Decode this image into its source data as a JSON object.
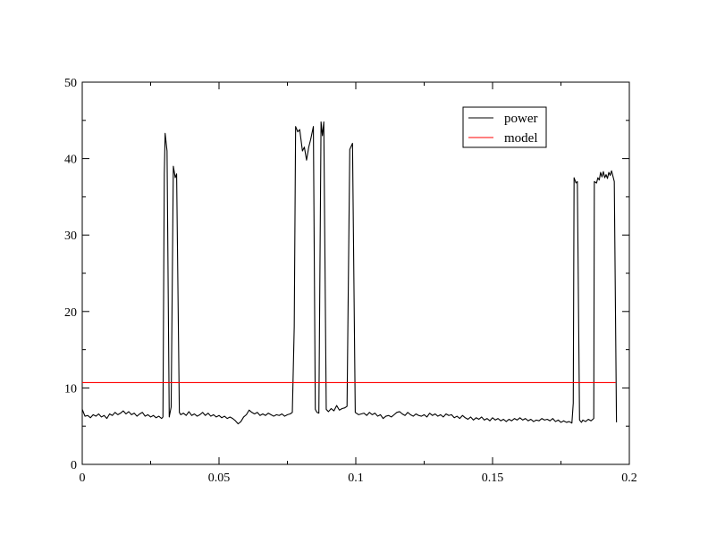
{
  "chart_data": {
    "type": "line",
    "title": "",
    "xlabel": "",
    "ylabel": "",
    "xlim": [
      0,
      0.2
    ],
    "ylim": [
      0,
      50
    ],
    "x_ticks": [
      0,
      0.05,
      0.1,
      0.15,
      0.2
    ],
    "x_tick_labels": [
      "0",
      "0.05",
      "0.1",
      "0.15",
      "0.2"
    ],
    "y_ticks": [
      0,
      10,
      20,
      30,
      40,
      50
    ],
    "y_tick_labels": [
      "0",
      "10",
      "20",
      "30",
      "40",
      "50"
    ],
    "grid": false,
    "legend_position": "top-right",
    "series": [
      {
        "name": "power",
        "color": "#000000",
        "points": [
          [
            0.0,
            7.2
          ],
          [
            0.001,
            6.3
          ],
          [
            0.002,
            6.4
          ],
          [
            0.003,
            6.1
          ],
          [
            0.004,
            6.5
          ],
          [
            0.005,
            6.3
          ],
          [
            0.006,
            6.6
          ],
          [
            0.007,
            6.2
          ],
          [
            0.008,
            6.4
          ],
          [
            0.009,
            6.0
          ],
          [
            0.01,
            6.6
          ],
          [
            0.011,
            6.4
          ],
          [
            0.012,
            6.8
          ],
          [
            0.013,
            6.5
          ],
          [
            0.014,
            6.7
          ],
          [
            0.015,
            7.0
          ],
          [
            0.016,
            6.6
          ],
          [
            0.017,
            6.9
          ],
          [
            0.018,
            6.5
          ],
          [
            0.019,
            6.7
          ],
          [
            0.02,
            6.3
          ],
          [
            0.021,
            6.6
          ],
          [
            0.022,
            6.8
          ],
          [
            0.023,
            6.3
          ],
          [
            0.024,
            6.5
          ],
          [
            0.025,
            6.2
          ],
          [
            0.026,
            6.4
          ],
          [
            0.027,
            6.1
          ],
          [
            0.028,
            6.3
          ],
          [
            0.029,
            6.0
          ],
          [
            0.0295,
            6.2
          ],
          [
            0.03,
            38.0
          ],
          [
            0.0303,
            43.3
          ],
          [
            0.031,
            41.0
          ],
          [
            0.0318,
            6.2
          ],
          [
            0.0325,
            7.5
          ],
          [
            0.0333,
            39.0
          ],
          [
            0.034,
            37.5
          ],
          [
            0.0345,
            38.0
          ],
          [
            0.0355,
            6.8
          ],
          [
            0.036,
            6.5
          ],
          [
            0.037,
            6.7
          ],
          [
            0.038,
            6.4
          ],
          [
            0.039,
            6.9
          ],
          [
            0.04,
            6.4
          ],
          [
            0.041,
            6.6
          ],
          [
            0.042,
            6.3
          ],
          [
            0.043,
            6.5
          ],
          [
            0.044,
            6.8
          ],
          [
            0.045,
            6.4
          ],
          [
            0.046,
            6.7
          ],
          [
            0.047,
            6.3
          ],
          [
            0.048,
            6.5
          ],
          [
            0.049,
            6.2
          ],
          [
            0.05,
            6.4
          ],
          [
            0.051,
            6.1
          ],
          [
            0.052,
            6.3
          ],
          [
            0.053,
            6.0
          ],
          [
            0.054,
            6.2
          ],
          [
            0.055,
            6.0
          ],
          [
            0.056,
            5.7
          ],
          [
            0.057,
            5.3
          ],
          [
            0.058,
            5.6
          ],
          [
            0.059,
            6.2
          ],
          [
            0.06,
            6.5
          ],
          [
            0.061,
            7.1
          ],
          [
            0.062,
            6.8
          ],
          [
            0.063,
            6.6
          ],
          [
            0.064,
            6.8
          ],
          [
            0.065,
            6.4
          ],
          [
            0.066,
            6.6
          ],
          [
            0.067,
            6.4
          ],
          [
            0.068,
            6.7
          ],
          [
            0.069,
            6.5
          ],
          [
            0.07,
            6.3
          ],
          [
            0.071,
            6.5
          ],
          [
            0.072,
            6.4
          ],
          [
            0.073,
            6.6
          ],
          [
            0.074,
            6.3
          ],
          [
            0.075,
            6.5
          ],
          [
            0.076,
            6.6
          ],
          [
            0.0768,
            6.8
          ],
          [
            0.0775,
            18.0
          ],
          [
            0.078,
            44.2
          ],
          [
            0.0788,
            43.5
          ],
          [
            0.0795,
            43.8
          ],
          [
            0.0805,
            41.0
          ],
          [
            0.0812,
            41.5
          ],
          [
            0.082,
            39.8
          ],
          [
            0.0828,
            41.5
          ],
          [
            0.0835,
            42.5
          ],
          [
            0.0845,
            44.2
          ],
          [
            0.0852,
            7.2
          ],
          [
            0.0858,
            6.8
          ],
          [
            0.0865,
            6.7
          ],
          [
            0.0873,
            44.8
          ],
          [
            0.0878,
            43.0
          ],
          [
            0.0883,
            44.8
          ],
          [
            0.0892,
            7.2
          ],
          [
            0.09,
            6.9
          ],
          [
            0.091,
            7.3
          ],
          [
            0.092,
            7.0
          ],
          [
            0.093,
            7.7
          ],
          [
            0.094,
            7.1
          ],
          [
            0.095,
            7.3
          ],
          [
            0.096,
            7.4
          ],
          [
            0.0968,
            7.6
          ],
          [
            0.0978,
            41.2
          ],
          [
            0.0988,
            42.0
          ],
          [
            0.0998,
            6.8
          ],
          [
            0.101,
            6.5
          ],
          [
            0.102,
            6.6
          ],
          [
            0.103,
            6.7
          ],
          [
            0.104,
            6.4
          ],
          [
            0.105,
            6.8
          ],
          [
            0.106,
            6.5
          ],
          [
            0.107,
            6.7
          ],
          [
            0.108,
            6.3
          ],
          [
            0.109,
            6.5
          ],
          [
            0.11,
            6.0
          ],
          [
            0.111,
            6.3
          ],
          [
            0.112,
            6.4
          ],
          [
            0.113,
            6.2
          ],
          [
            0.114,
            6.5
          ],
          [
            0.115,
            6.8
          ],
          [
            0.116,
            6.9
          ],
          [
            0.117,
            6.6
          ],
          [
            0.118,
            6.4
          ],
          [
            0.119,
            6.8
          ],
          [
            0.12,
            6.5
          ],
          [
            0.121,
            6.3
          ],
          [
            0.122,
            6.6
          ],
          [
            0.123,
            6.4
          ],
          [
            0.124,
            6.3
          ],
          [
            0.125,
            6.5
          ],
          [
            0.126,
            6.2
          ],
          [
            0.127,
            6.7
          ],
          [
            0.128,
            6.4
          ],
          [
            0.129,
            6.6
          ],
          [
            0.13,
            6.3
          ],
          [
            0.131,
            6.5
          ],
          [
            0.132,
            6.2
          ],
          [
            0.133,
            6.6
          ],
          [
            0.134,
            6.4
          ],
          [
            0.135,
            6.5
          ],
          [
            0.136,
            6.1
          ],
          [
            0.137,
            6.3
          ],
          [
            0.138,
            6.0
          ],
          [
            0.139,
            6.4
          ],
          [
            0.14,
            6.1
          ],
          [
            0.141,
            5.9
          ],
          [
            0.142,
            6.2
          ],
          [
            0.143,
            5.8
          ],
          [
            0.144,
            6.1
          ],
          [
            0.145,
            5.9
          ],
          [
            0.146,
            6.2
          ],
          [
            0.147,
            5.8
          ],
          [
            0.148,
            6.0
          ],
          [
            0.149,
            5.7
          ],
          [
            0.15,
            6.1
          ],
          [
            0.151,
            5.8
          ],
          [
            0.152,
            6.0
          ],
          [
            0.153,
            5.7
          ],
          [
            0.154,
            5.9
          ],
          [
            0.155,
            5.6
          ],
          [
            0.156,
            5.9
          ],
          [
            0.157,
            5.7
          ],
          [
            0.158,
            6.0
          ],
          [
            0.159,
            5.8
          ],
          [
            0.16,
            6.1
          ],
          [
            0.161,
            5.8
          ],
          [
            0.162,
            6.0
          ],
          [
            0.163,
            5.7
          ],
          [
            0.164,
            5.9
          ],
          [
            0.165,
            5.6
          ],
          [
            0.166,
            5.8
          ],
          [
            0.167,
            5.7
          ],
          [
            0.168,
            6.0
          ],
          [
            0.169,
            5.8
          ],
          [
            0.17,
            5.9
          ],
          [
            0.171,
            5.7
          ],
          [
            0.172,
            6.0
          ],
          [
            0.173,
            5.6
          ],
          [
            0.174,
            5.8
          ],
          [
            0.175,
            5.5
          ],
          [
            0.176,
            5.7
          ],
          [
            0.177,
            5.5
          ],
          [
            0.178,
            5.6
          ],
          [
            0.179,
            5.4
          ],
          [
            0.1795,
            8.0
          ],
          [
            0.1798,
            37.5
          ],
          [
            0.1805,
            36.8
          ],
          [
            0.181,
            37.0
          ],
          [
            0.1818,
            5.8
          ],
          [
            0.1825,
            5.5
          ],
          [
            0.183,
            5.8
          ],
          [
            0.184,
            5.6
          ],
          [
            0.185,
            5.9
          ],
          [
            0.186,
            5.7
          ],
          [
            0.187,
            6.0
          ],
          [
            0.1872,
            37.0
          ],
          [
            0.188,
            36.8
          ],
          [
            0.1885,
            37.5
          ],
          [
            0.189,
            37.2
          ],
          [
            0.1895,
            38.2
          ],
          [
            0.19,
            37.6
          ],
          [
            0.1905,
            38.3
          ],
          [
            0.191,
            37.5
          ],
          [
            0.1915,
            37.9
          ],
          [
            0.192,
            37.4
          ],
          [
            0.1925,
            38.2
          ],
          [
            0.193,
            37.8
          ],
          [
            0.1935,
            38.4
          ],
          [
            0.1945,
            37.0
          ],
          [
            0.1953,
            5.5
          ]
        ]
      },
      {
        "name": "model",
        "color": "#ff0000",
        "points": [
          [
            0.0,
            10.7
          ],
          [
            0.195,
            10.7
          ]
        ]
      }
    ]
  }
}
